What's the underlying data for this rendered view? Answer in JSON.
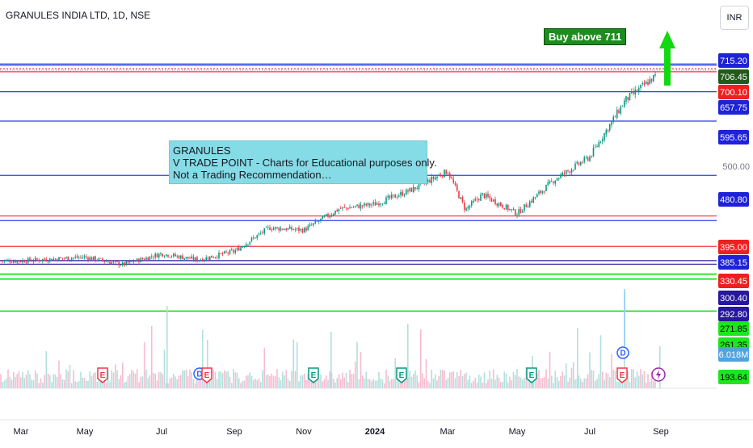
{
  "header": {
    "title": "GRANULES INDIA LTD, 1D, NSE",
    "currency": "INR"
  },
  "annotations": {
    "buy_label": "Buy above 711",
    "note_lines": [
      "GRANULES",
      "V TRADE POINT - Charts for Educational purposes only.",
      "Not a Trading Recommendation…"
    ]
  },
  "colors": {
    "up": "#26a69a",
    "down": "#ef5350",
    "blue_level": "#2962ff",
    "red_level": "#f23645",
    "green_level": "#00e600",
    "purple_level": "#311b92",
    "arrow": "#12d812",
    "buy_box": "#1e8c1e"
  },
  "chart_data": {
    "type": "candlestick",
    "title": "GRANULES INDIA LTD, 1D, NSE",
    "x_axis": {
      "tick_labels": [
        "Mar",
        "May",
        "Jul",
        "Sep",
        "Nov",
        "2024",
        "Mar",
        "May",
        "Jul",
        "Sep"
      ]
    },
    "y_axis": {
      "currency": "INR",
      "tick_labels": [
        "500.00"
      ],
      "ylim": [
        188,
        730
      ]
    },
    "price_anchors": [
      {
        "month": "Mar 2023",
        "close": 300
      },
      {
        "month": "May 2023",
        "close": 308
      },
      {
        "month": "Jun 2023",
        "close": 292
      },
      {
        "month": "Jul 2023",
        "close": 315
      },
      {
        "month": "Aug 2023",
        "close": 302
      },
      {
        "month": "Sep 2023",
        "close": 320
      },
      {
        "month": "Oct 2023",
        "close": 370
      },
      {
        "month": "Nov 2023",
        "close": 365
      },
      {
        "month": "Dec 2023",
        "close": 410
      },
      {
        "month": "Jan 2024",
        "close": 420
      },
      {
        "month": "Feb 2024",
        "close": 450
      },
      {
        "month": "Mar 2024",
        "close": 490
      },
      {
        "month": "Mar 2024 low",
        "close": 408
      },
      {
        "month": "Apr 2024",
        "close": 440
      },
      {
        "month": "May 2024",
        "close": 400
      },
      {
        "month": "Jun 2024",
        "close": 470
      },
      {
        "month": "Jul 2024",
        "close": 520
      },
      {
        "month": "Aug 2024",
        "close": 640
      },
      {
        "month": "Sep 2024",
        "close": 700
      }
    ],
    "levels": [
      {
        "label": "715.20",
        "value": 715.2,
        "color": "blue"
      },
      {
        "label": "706.45",
        "value": 706.45,
        "color": "dark-green"
      },
      {
        "label": "700.10",
        "value": 700.1,
        "color": "red"
      },
      {
        "label": "657.75",
        "value": 657.75,
        "color": "blue"
      },
      {
        "label": "595.65",
        "value": 595.65,
        "color": "blue"
      },
      {
        "label": "480.80",
        "value": 480.8,
        "color": "blue"
      },
      {
        "label": "395.00",
        "value": 395.0,
        "color": "red"
      },
      {
        "label": "385.15",
        "value": 385.15,
        "color": "blue"
      },
      {
        "label": "330.45",
        "value": 330.45,
        "color": "red"
      },
      {
        "label": "300.40",
        "value": 300.4,
        "color": "purple"
      },
      {
        "label": "292.80",
        "value": 292.8,
        "color": "purple"
      },
      {
        "label": "271.85",
        "value": 271.85,
        "color": "green"
      },
      {
        "label": "261.35",
        "value": 261.35,
        "color": "green"
      },
      {
        "label": "193.64",
        "value": 193.64,
        "color": "green"
      }
    ],
    "volume": {
      "last_label": "6.018M",
      "last_value_m": 6.018
    },
    "events": [
      {
        "type": "E",
        "month": "Apr 2023",
        "color": "red"
      },
      {
        "type": "D",
        "month": "Aug 2023",
        "color": "blue"
      },
      {
        "type": "E",
        "month": "Aug 2023",
        "color": "red"
      },
      {
        "type": "E",
        "month": "Nov 2023",
        "color": "green"
      },
      {
        "type": "E",
        "month": "Jan 2024",
        "color": "green"
      },
      {
        "type": "E",
        "month": "May 2024",
        "color": "green"
      },
      {
        "type": "D",
        "month": "Aug 2024",
        "color": "blue"
      },
      {
        "type": "E",
        "month": "Aug 2024",
        "color": "red"
      },
      {
        "type": "split",
        "month": "Sep 2024",
        "color": "purple"
      }
    ]
  }
}
